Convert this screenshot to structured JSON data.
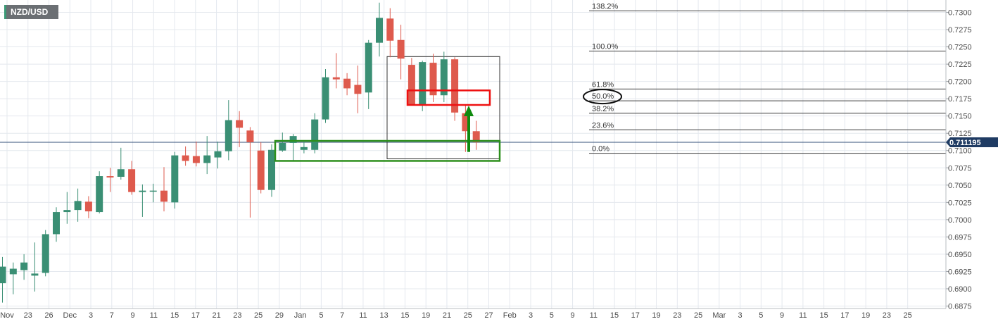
{
  "symbol": "NZD/USD",
  "colors": {
    "up": "#3a8f74",
    "down": "#de5a4d",
    "grid": "#e4e8ee",
    "axis_text": "#4a4a4a",
    "current_price_line": "#34507a",
    "current_price_tag": "#1f3b63",
    "fib_line": "#3c3c3c",
    "support_zone": "#2c8f1c",
    "resistance_zone": "#ee1111",
    "arrow": "#0f8a0f",
    "ellipse": "#111111"
  },
  "chart_data": {
    "type": "candlestick",
    "title": "",
    "ylim": [
      0.6875,
      0.7315
    ],
    "y_ticks": [
      "0.7300",
      "0.7275",
      "0.7250",
      "0.7225",
      "0.7200",
      "0.7175",
      "0.7150",
      "0.7125",
      "0.7100",
      "0.7075",
      "0.7050",
      "0.7025",
      "0.7000",
      "0.6975",
      "0.6950",
      "0.6925",
      "0.6900",
      "0.6875"
    ],
    "x_tick_labels": [
      "Nov",
      "23",
      "26",
      "Dec",
      "3",
      "7",
      "9",
      "11",
      "15",
      "17",
      "21",
      "23",
      "25",
      "29",
      "Jan",
      "5",
      "7",
      "11",
      "13",
      "15",
      "19",
      "21",
      "25",
      "27",
      "Feb",
      "3",
      "5",
      "9",
      "11",
      "15",
      "17",
      "19",
      "23",
      "25",
      "Mar",
      "3",
      "5",
      "9",
      "11",
      "15",
      "17",
      "19",
      "23",
      "25"
    ],
    "current_price": "0.711195",
    "candles": [
      {
        "o": 0.6908,
        "h": 0.6946,
        "l": 0.688,
        "c": 0.6932
      },
      {
        "o": 0.6921,
        "h": 0.6938,
        "l": 0.6892,
        "c": 0.6929
      },
      {
        "o": 0.6927,
        "h": 0.695,
        "l": 0.6913,
        "c": 0.6938
      },
      {
        "o": 0.6919,
        "h": 0.6967,
        "l": 0.6896,
        "c": 0.6922
      },
      {
        "o": 0.6923,
        "h": 0.6985,
        "l": 0.6918,
        "c": 0.6979
      },
      {
        "o": 0.6979,
        "h": 0.7018,
        "l": 0.6968,
        "c": 0.7011
      },
      {
        "o": 0.7011,
        "h": 0.704,
        "l": 0.6994,
        "c": 0.7014
      },
      {
        "o": 0.7014,
        "h": 0.7045,
        "l": 0.6997,
        "c": 0.7027
      },
      {
        "o": 0.7026,
        "h": 0.7034,
        "l": 0.7002,
        "c": 0.7012
      },
      {
        "o": 0.7011,
        "h": 0.707,
        "l": 0.7009,
        "c": 0.7063
      },
      {
        "o": 0.7063,
        "h": 0.7075,
        "l": 0.704,
        "c": 0.7061
      },
      {
        "o": 0.7062,
        "h": 0.7104,
        "l": 0.7058,
        "c": 0.7073
      },
      {
        "o": 0.7073,
        "h": 0.7085,
        "l": 0.7036,
        "c": 0.704
      },
      {
        "o": 0.704,
        "h": 0.7051,
        "l": 0.7004,
        "c": 0.7042
      },
      {
        "o": 0.7042,
        "h": 0.7052,
        "l": 0.7025,
        "c": 0.7042
      },
      {
        "o": 0.7042,
        "h": 0.7076,
        "l": 0.7012,
        "c": 0.7026
      },
      {
        "o": 0.7025,
        "h": 0.7098,
        "l": 0.7016,
        "c": 0.7093
      },
      {
        "o": 0.7093,
        "h": 0.7106,
        "l": 0.7078,
        "c": 0.7085
      },
      {
        "o": 0.7092,
        "h": 0.7113,
        "l": 0.7077,
        "c": 0.7082
      },
      {
        "o": 0.7082,
        "h": 0.7121,
        "l": 0.7066,
        "c": 0.7093
      },
      {
        "o": 0.709,
        "h": 0.7113,
        "l": 0.7074,
        "c": 0.7099
      },
      {
        "o": 0.7099,
        "h": 0.7173,
        "l": 0.7086,
        "c": 0.7144
      },
      {
        "o": 0.7144,
        "h": 0.7157,
        "l": 0.7105,
        "c": 0.7133
      },
      {
        "o": 0.7129,
        "h": 0.7134,
        "l": 0.7003,
        "c": 0.7112
      },
      {
        "o": 0.71,
        "h": 0.7112,
        "l": 0.7038,
        "c": 0.7043
      },
      {
        "o": 0.7043,
        "h": 0.7109,
        "l": 0.7033,
        "c": 0.7101
      },
      {
        "o": 0.71,
        "h": 0.7126,
        "l": 0.7098,
        "c": 0.7111
      },
      {
        "o": 0.7111,
        "h": 0.7124,
        "l": 0.7085,
        "c": 0.7121
      },
      {
        "o": 0.7101,
        "h": 0.7112,
        "l": 0.7096,
        "c": 0.7105
      },
      {
        "o": 0.7101,
        "h": 0.7154,
        "l": 0.7096,
        "c": 0.7145
      },
      {
        "o": 0.7145,
        "h": 0.7218,
        "l": 0.714,
        "c": 0.7206
      },
      {
        "o": 0.7206,
        "h": 0.7241,
        "l": 0.719,
        "c": 0.7203
      },
      {
        "o": 0.7204,
        "h": 0.7212,
        "l": 0.718,
        "c": 0.719
      },
      {
        "o": 0.7195,
        "h": 0.7223,
        "l": 0.7154,
        "c": 0.7182
      },
      {
        "o": 0.7184,
        "h": 0.726,
        "l": 0.716,
        "c": 0.7256
      },
      {
        "o": 0.7256,
        "h": 0.7314,
        "l": 0.7236,
        "c": 0.7292
      },
      {
        "o": 0.7291,
        "h": 0.7306,
        "l": 0.7235,
        "c": 0.7259
      },
      {
        "o": 0.726,
        "h": 0.7282,
        "l": 0.7203,
        "c": 0.7233
      },
      {
        "o": 0.7224,
        "h": 0.7234,
        "l": 0.7165,
        "c": 0.7167
      },
      {
        "o": 0.7167,
        "h": 0.723,
        "l": 0.7157,
        "c": 0.7228
      },
      {
        "o": 0.7227,
        "h": 0.724,
        "l": 0.717,
        "c": 0.718
      },
      {
        "o": 0.718,
        "h": 0.7243,
        "l": 0.717,
        "c": 0.7232
      },
      {
        "o": 0.7232,
        "h": 0.7235,
        "l": 0.7143,
        "c": 0.7155
      },
      {
        "o": 0.7154,
        "h": 0.7165,
        "l": 0.7098,
        "c": 0.7128
      },
      {
        "o": 0.7128,
        "h": 0.7143,
        "l": 0.7101,
        "c": 0.7112
      }
    ],
    "fibonacci": [
      {
        "label": "138.2%",
        "price": 0.7302
      },
      {
        "label": "100.0%",
        "price": 0.7244
      },
      {
        "label": "61.8%",
        "price": 0.7189
      },
      {
        "label": "50.0%",
        "price": 0.7172
      },
      {
        "label": "38.2%",
        "price": 0.7154
      },
      {
        "label": "23.6%",
        "price": 0.713
      },
      {
        "label": "0.0%",
        "price": 0.7096
      }
    ],
    "annotations": {
      "range_box": {
        "high": 0.7236,
        "low": 0.7088
      },
      "support_zone": {
        "high": 0.7114,
        "low": 0.7085
      },
      "resistance_zone": {
        "high": 0.7187,
        "low": 0.7166
      },
      "arrow": {
        "from": 0.7098,
        "to": 0.7166
      },
      "circled_level": "50.0%"
    }
  }
}
